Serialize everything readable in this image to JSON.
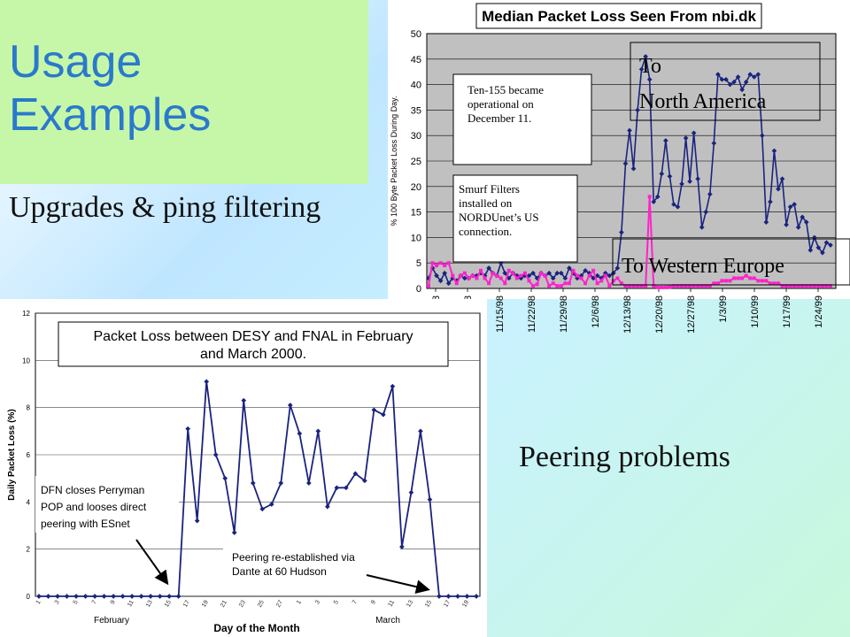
{
  "slide": {
    "title_line1": "Usage",
    "title_line2": "Examples",
    "subtitle1": "Upgrades & ping filtering",
    "subtitle2": "Peering problems"
  },
  "colors": {
    "title": "#2a79cc",
    "title_bg": "#c6f7a8",
    "series_blue": "#1a237e",
    "series_pink": "#ff22cc",
    "plot_bg1": "#c0c0c0",
    "plot_bg2": "#ffffff"
  },
  "chart_data": [
    {
      "type": "line",
      "title": "Median Packet Loss Seen From nbi.dk",
      "ylabel": "% 100 Byte Packet Loss During Day.",
      "ylim": [
        0,
        50
      ],
      "yticks": [
        0,
        5,
        10,
        15,
        20,
        25,
        30,
        35,
        40,
        45,
        50
      ],
      "x_tick_labels": [
        "/98",
        "/98",
        "11/15/98",
        "11/22/98",
        "11/29/98",
        "12/6/98",
        "12/13/98",
        "12/20/98",
        "12/27/98",
        "1/3/99",
        "1/10/99",
        "1/17/99",
        "1/24/99"
      ],
      "annotations": [
        "Ten-155 became operational on December 11.",
        "Smurf Filters installed on NORDUnet’s US connection.",
        "To",
        "North America",
        "To Western Europe"
      ],
      "series": [
        {
          "values": [
            2,
            4,
            2.5,
            1.5,
            3,
            1,
            2,
            1.5,
            2.5,
            2,
            2,
            2.5,
            2.5,
            3,
            2.5,
            4,
            3,
            2.5,
            5,
            3,
            2,
            3,
            2.5,
            2,
            2.5,
            2.5,
            3,
            2,
            3,
            2.5,
            3,
            2,
            3,
            3,
            2,
            4,
            3,
            2,
            2.5,
            3.5,
            3,
            2,
            2.5,
            2,
            3,
            2.5,
            3,
            4,
            11,
            24.5,
            31,
            23.5,
            35,
            43,
            45.5,
            41,
            17,
            18,
            22.5,
            29,
            22,
            16.5,
            16,
            20.5,
            29.5,
            21,
            30.5,
            21.5,
            12,
            15,
            18.5,
            28.5,
            42,
            41,
            41,
            40,
            40.5,
            41.5,
            39,
            40.5,
            42,
            41.5,
            42,
            30,
            13,
            17,
            27,
            19.5,
            21.5,
            12.5,
            16,
            16.5,
            12,
            14,
            13,
            7.5,
            10,
            8,
            7,
            9,
            8.5
          ]
        },
        {
          "values": [
            0.5,
            5,
            4.5,
            5,
            4.5,
            5,
            2.5,
            1,
            2.5,
            3,
            2,
            2.5,
            2,
            3.5,
            2,
            1,
            3,
            2.5,
            2,
            1,
            3.5,
            3,
            2,
            2.5,
            3,
            1.5,
            0.5,
            0.8,
            3,
            2.5,
            0.5,
            1,
            0.5,
            0.5,
            1,
            1,
            3.5,
            2.5,
            2,
            1,
            2.5,
            3.5,
            1,
            1.5,
            2.5,
            0.5,
            1.5,
            2,
            1,
            0.5,
            0.5,
            0.5,
            0.5,
            0.5,
            0.5,
            18,
            0.5,
            0.2,
            0.2,
            0.2,
            0.3,
            0.5,
            0.5,
            0.5,
            0.5,
            0.5,
            0.5,
            0.5,
            0.5,
            0.5,
            0.5,
            1,
            1,
            1.5,
            1.5,
            1.5,
            2,
            2,
            2,
            2.5,
            2,
            2,
            1.5,
            1.5,
            1.5,
            1,
            1,
            1,
            0.5,
            0.5,
            0.5,
            0.5,
            0.5,
            0.5,
            0.5,
            0.5,
            0.5,
            0.5,
            0.5,
            0.5,
            0.5
          ]
        }
      ]
    },
    {
      "type": "line",
      "title": "Packet Loss between DESY and FNAL in February and March 2000.",
      "xlabel": "Day of the Month",
      "ylabel": "Daily Packet Loss (%)",
      "ylim": [
        0,
        12
      ],
      "yticks": [
        0,
        2,
        4,
        6,
        8,
        10,
        12
      ],
      "x_tick_labels": [
        "1",
        "3",
        "5",
        "7",
        "9",
        "11",
        "13",
        "15",
        "17",
        "19",
        "21",
        "23",
        "25",
        "27",
        "1",
        "3",
        "5",
        "7",
        "9",
        "11",
        "13",
        "15",
        "17",
        "19"
      ],
      "month_labels": [
        "February",
        "March"
      ],
      "annotations": [
        "DFN closes Perryman POP and looses direct peering with ESnet",
        "Peering re-established via Dante at 60 Hudson"
      ],
      "series": [
        {
          "values": [
            0,
            0,
            0,
            0,
            0,
            0,
            0,
            0,
            0,
            0,
            0,
            0,
            0,
            0,
            0,
            0,
            7.1,
            3.2,
            9.1,
            6,
            5,
            2.7,
            8.3,
            4.8,
            3.7,
            3.9,
            4.8,
            8.1,
            6.9,
            4.8,
            7,
            3.8,
            4.6,
            4.6,
            5.2,
            4.9,
            7.9,
            7.7,
            8.9,
            2.1,
            4.4,
            7,
            4.1,
            0,
            0,
            0,
            0,
            0
          ]
        }
      ]
    }
  ]
}
